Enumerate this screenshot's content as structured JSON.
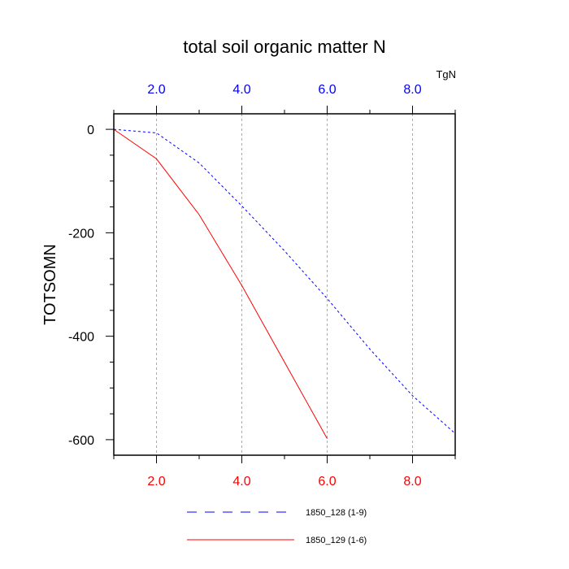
{
  "chart_data": {
    "type": "line",
    "title": "total soil organic matter N",
    "ylabel": "TOTSOMN",
    "unit_label": "TgN",
    "xlim": [
      1,
      9
    ],
    "ylim": [
      -630,
      30
    ],
    "x_ticks": [
      2,
      4,
      6,
      8
    ],
    "x_tick_labels": [
      "2.0",
      "4.0",
      "6.0",
      "8.0"
    ],
    "y_ticks": [
      0,
      -200,
      -400,
      -600
    ],
    "y_tick_labels": [
      "0",
      "-200",
      "-400",
      "-600"
    ],
    "top_axis_color": "#0000ff",
    "bottom_axis_color": "#ff0000",
    "vertical_grid": true,
    "legend_position": "bottom",
    "series": [
      {
        "name": "1850_128 (1-9)",
        "color": "#0000ff",
        "dash": "dashed",
        "x": [
          1,
          2,
          3,
          4,
          5,
          6,
          7,
          8,
          9
        ],
        "y": [
          0,
          -7,
          -65,
          -148,
          -235,
          -327,
          -425,
          -515,
          -588
        ]
      },
      {
        "name": "1850_129 (1-6)",
        "color": "#ff0000",
        "dash": "solid",
        "x": [
          1,
          2,
          3,
          4,
          5,
          6
        ],
        "y": [
          0,
          -57,
          -165,
          -302,
          -450,
          -598
        ]
      }
    ]
  }
}
